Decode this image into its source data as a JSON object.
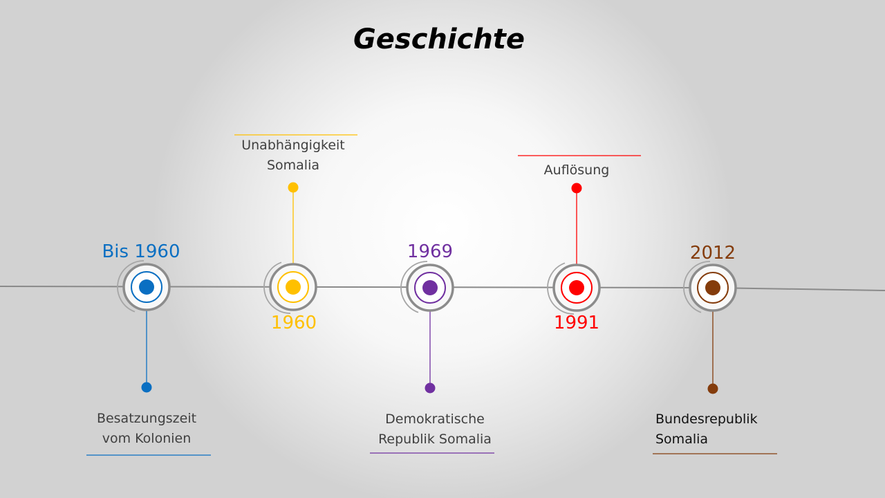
{
  "title": "Geschichte",
  "colors": {
    "axis": "#8a8a8a",
    "ring": "#8c8c8c",
    "blue": "#0a6fc2",
    "yellow": "#ffc000",
    "purple": "#7030a0",
    "red": "#ff0000",
    "brown": "#843c0c"
  },
  "milestones": [
    {
      "year": "Bis 1960",
      "label_lines": [
        "Besatzungszeit",
        "vom Kolonien"
      ],
      "color": "#0a6fc2"
    },
    {
      "year": "1960",
      "label_lines": [
        "Unabhängigkeit",
        "Somalia"
      ],
      "color": "#ffc000"
    },
    {
      "year": "1969",
      "label_lines": [
        "Demokratische",
        "Republik Somalia"
      ],
      "color": "#7030a0"
    },
    {
      "year": "1991",
      "label_lines": [
        "Auflösung"
      ],
      "color": "#ff0000"
    },
    {
      "year": "2012",
      "label_lines": [
        "Bundesrepublik",
        "Somalia"
      ],
      "color": "#843c0c"
    }
  ]
}
